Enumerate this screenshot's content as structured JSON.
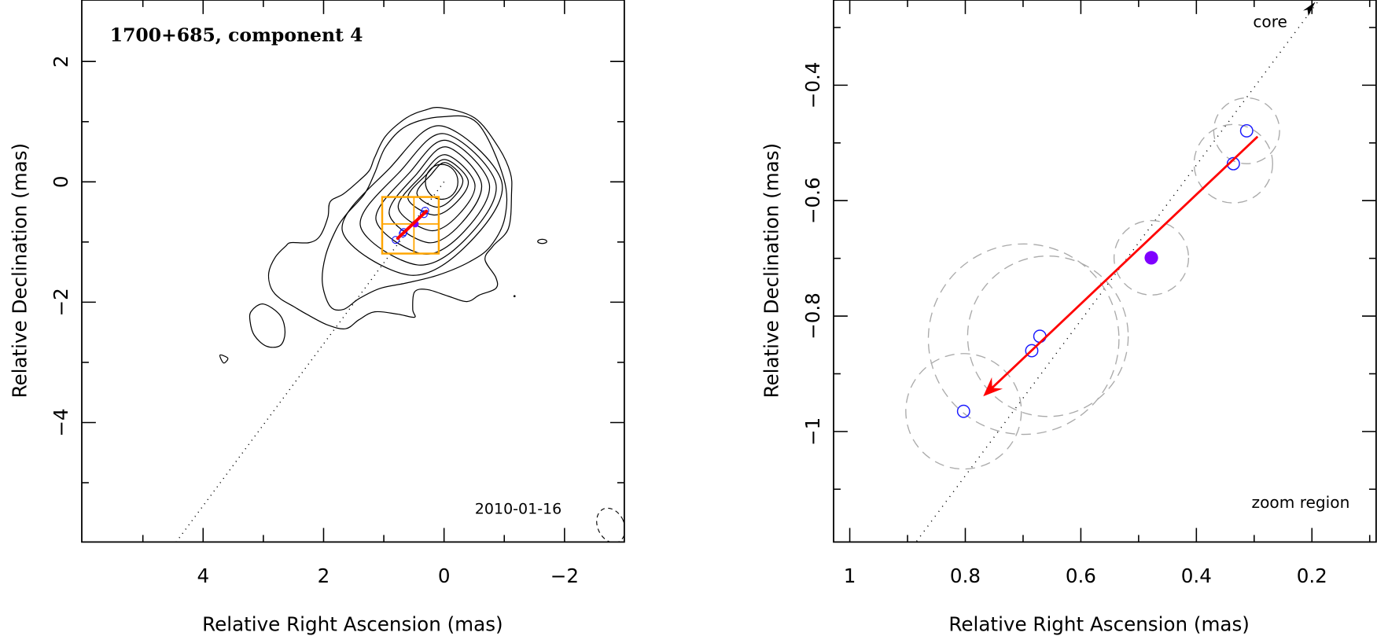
{
  "chart_data": [
    {
      "type": "contour",
      "title": "1700+685, component 4",
      "date_label": "2010-01-16",
      "xlabel": "Relative Right Ascension (mas)",
      "ylabel": "Relative Declination (mas)",
      "xlim": [
        6.01,
        -3.0
      ],
      "ylim": [
        -6.0,
        3.02
      ],
      "xticks": [
        4,
        2,
        0,
        -2
      ],
      "xtick_labels": [
        "4",
        "2",
        "0",
        "−2"
      ],
      "xminor": [
        5,
        3,
        1,
        -1
      ],
      "yticks": [
        2,
        0,
        -2,
        -4
      ],
      "ytick_labels": [
        "2",
        "0",
        "−2",
        "−4"
      ],
      "yminor": [
        1,
        -1,
        -3,
        -5
      ],
      "contours_traced": [
        [
          [
            0.04,
            1.23
          ],
          [
            -0.51,
            1.06
          ],
          [
            -0.9,
            0.58
          ],
          [
            -1.1,
            0.15
          ],
          [
            -1.12,
            -0.2
          ],
          [
            -1.07,
            -0.77
          ],
          [
            -0.81,
            -1.07
          ],
          [
            -0.68,
            -1.29
          ],
          [
            -0.86,
            -1.59
          ],
          [
            -0.86,
            -1.77
          ],
          [
            -0.59,
            -1.88
          ],
          [
            -0.38,
            -1.99
          ],
          [
            -0.07,
            -1.9
          ],
          [
            0.28,
            -1.79
          ],
          [
            0.49,
            -1.83
          ],
          [
            0.52,
            -2.12
          ],
          [
            0.49,
            -2.25
          ],
          [
            0.76,
            -2.2
          ],
          [
            1.15,
            -2.16
          ],
          [
            1.41,
            -2.29
          ],
          [
            1.63,
            -2.44
          ],
          [
            1.93,
            -2.38
          ],
          [
            2.28,
            -2.2
          ],
          [
            2.5,
            -2.07
          ],
          [
            2.72,
            -1.94
          ],
          [
            2.87,
            -1.77
          ],
          [
            2.91,
            -1.51
          ],
          [
            2.8,
            -1.25
          ],
          [
            2.63,
            -1.07
          ],
          [
            2.54,
            -1.01
          ],
          [
            2.24,
            -1.01
          ],
          [
            2.06,
            -0.9
          ],
          [
            1.93,
            -0.59
          ],
          [
            1.89,
            -0.33
          ],
          [
            1.67,
            -0.2
          ],
          [
            1.41,
            0.02
          ],
          [
            1.24,
            0.19
          ],
          [
            1.15,
            0.41
          ],
          [
            0.97,
            0.76
          ],
          [
            0.63,
            1.06
          ],
          [
            0.32,
            1.19
          ]
        ],
        [
          [
            0.04,
            1.08
          ],
          [
            -0.55,
            0.98
          ],
          [
            -0.99,
            0.06
          ],
          [
            -1.01,
            -0.59
          ],
          [
            -0.77,
            -1.07
          ],
          [
            -0.42,
            -1.33
          ],
          [
            0.1,
            -1.55
          ],
          [
            0.62,
            -1.68
          ],
          [
            1.06,
            -1.77
          ],
          [
            1.41,
            -1.94
          ],
          [
            1.67,
            -2.12
          ],
          [
            1.89,
            -2.07
          ],
          [
            2.02,
            -1.68
          ],
          [
            1.97,
            -1.24
          ],
          [
            1.8,
            -0.81
          ],
          [
            1.63,
            -0.55
          ],
          [
            1.32,
            -0.2
          ],
          [
            1.15,
            0.15
          ],
          [
            0.97,
            0.58
          ],
          [
            0.62,
            0.93
          ]
        ],
        [
          [
            3.2,
            -2.15
          ],
          [
            3.0,
            -2.03
          ],
          [
            2.72,
            -2.22
          ],
          [
            2.64,
            -2.5
          ],
          [
            2.72,
            -2.72
          ],
          [
            2.95,
            -2.73
          ],
          [
            3.15,
            -2.55
          ],
          [
            3.22,
            -2.32
          ]
        ],
        [
          [
            3.72,
            -2.88
          ],
          [
            3.59,
            -2.93
          ],
          [
            3.66,
            -3.01
          ]
        ]
      ],
      "contours_extent": [
        {
          "ra": [
            1.69,
            -0.96
          ],
          "dec": [
            0.93,
            -1.55
          ]
        },
        {
          "ra": [
            1.39,
            -0.86
          ],
          "dec": [
            0.8,
            -1.38
          ]
        },
        {
          "ra": [
            1.13,
            -0.75
          ],
          "dec": [
            0.69,
            -1.2
          ]
        },
        {
          "ra": [
            0.91,
            -0.62
          ],
          "dec": [
            0.58,
            -1.01
          ]
        },
        {
          "ra": [
            0.76,
            -0.51
          ],
          "dec": [
            0.45,
            -0.81
          ]
        },
        {
          "ra": [
            0.6,
            -0.4
          ],
          "dec": [
            0.37,
            -0.55
          ]
        },
        {
          "ra": [
            0.45,
            -0.31
          ],
          "dec": [
            0.32,
            -0.42
          ]
        }
      ],
      "contour_core": {
        "ra": 0.04,
        "dec": 0.0,
        "r_ra": 0.27,
        "r_dec": 0.29
      },
      "contour_islands": [
        {
          "ra": -1.63,
          "dec": -0.99,
          "r_ra": 0.075,
          "r_dec": 0.035
        }
      ],
      "contour_dot": {
        "ra": -1.17,
        "dec": -1.9
      },
      "beam": {
        "ra": -2.77,
        "dec": -5.71,
        "r_ra": 0.22,
        "r_dec": 0.3
      },
      "zoom_box": {
        "ra": [
          1.027,
          0.088
        ],
        "dec": [
          -1.192,
          -0.252
        ],
        "grid_ra": 0.5,
        "grid_dec": -0.7,
        "color": "#FFA500"
      }
    },
    {
      "type": "scatter",
      "xlabel": "Relative Right Ascension (mas)",
      "ylabel": "Relative Declination (mas)",
      "xlim": [
        1.027,
        0.088
      ],
      "ylim": [
        -1.192,
        -0.252
      ],
      "xticks": [
        1,
        0.8,
        0.6,
        0.4,
        0.2
      ],
      "xtick_labels": [
        "1",
        "0.8",
        "0.6",
        "0.4",
        "0.2"
      ],
      "xminor": [
        0.9,
        0.7,
        0.5,
        0.3,
        0.1
      ],
      "yticks": [
        -0.4,
        -0.6,
        -0.8,
        -1.0
      ],
      "ytick_labels": [
        "−0.4",
        "−0.6",
        "−0.8",
        "−1"
      ],
      "yminor": [
        -0.3,
        -0.5,
        -0.7,
        -0.9,
        -1.1
      ],
      "core_label": "core",
      "region_label": "zoom region",
      "jet_axis_slope_ra_per_dec": -0.743,
      "core_arrow_tip": {
        "ra": 0.194,
        "dec": -0.254
      },
      "components": [
        {
          "ra": 0.313,
          "dec": -0.479
        },
        {
          "ra": 0.336,
          "dec": -0.536
        },
        {
          "ra": 0.671,
          "dec": -0.835
        },
        {
          "ra": 0.685,
          "dec": -0.86
        },
        {
          "ra": 0.803,
          "dec": -0.965
        }
      ],
      "mean_position": {
        "ra": 0.478,
        "dec": -0.699
      },
      "model_sizes": [
        {
          "ra": 0.313,
          "dec": -0.479,
          "r": 0.057
        },
        {
          "ra": 0.336,
          "dec": -0.536,
          "r": 0.068
        },
        {
          "ra": 0.478,
          "dec": -0.699,
          "r": 0.0645
        },
        {
          "ra": 0.699,
          "dec": -0.84,
          "r": 0.165
        },
        {
          "ra": 0.657,
          "dec": -0.835,
          "r": 0.139
        },
        {
          "ra": 0.803,
          "dec": -0.965,
          "r": 0.1
        }
      ],
      "motion_vector": {
        "from": {
          "ra": 0.294,
          "dec": -0.489
        },
        "to": {
          "ra": 0.769,
          "dec": -0.939
        }
      },
      "colors": {
        "component": "#1a1aff",
        "mean": "#7f00ff",
        "vector": "#ff0000",
        "model": "#aaaaaa"
      }
    }
  ]
}
